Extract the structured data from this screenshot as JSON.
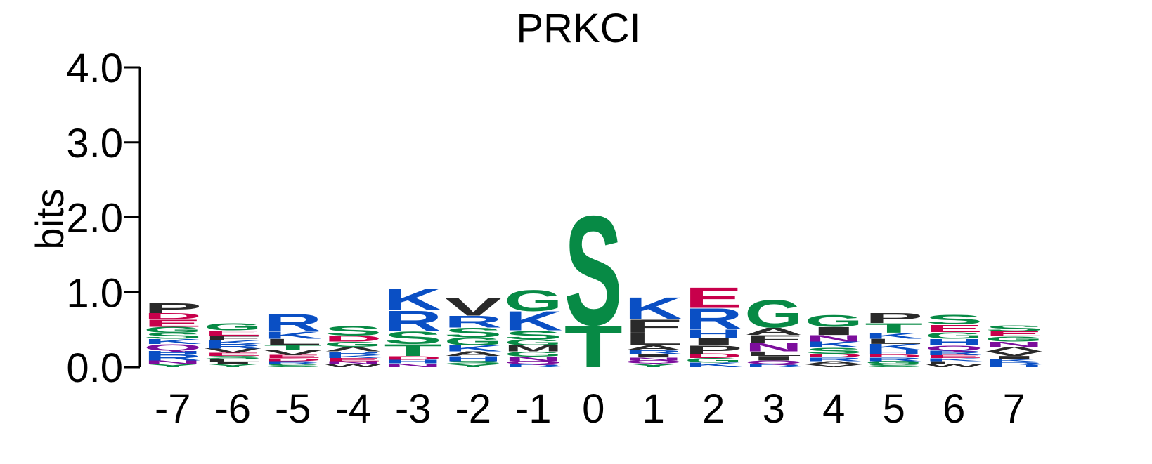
{
  "chart_data": {
    "type": "sequence-logo",
    "title": "PRKCI",
    "ylabel": "bits",
    "ylim": [
      0,
      4
    ],
    "yticks": [
      "0.0",
      "1.0",
      "2.0",
      "3.0",
      "4.0"
    ],
    "colors": {
      "acidic": "#c8004b",
      "basic": "#0a4fc4",
      "polar": "#078a45",
      "amide": "#7c0e9c",
      "hydrophobic": "#2a2a2a"
    },
    "color_map": {
      "D": "acidic",
      "E": "acidic",
      "K": "basic",
      "R": "basic",
      "H": "basic",
      "S": "polar",
      "T": "polar",
      "G": "polar",
      "Y": "polar",
      "C": "polar",
      "N": "amide",
      "Q": "amide",
      "A": "hydrophobic",
      "V": "hydrophobic",
      "L": "hydrophobic",
      "I": "hydrophobic",
      "P": "hydrophobic",
      "F": "hydrophobic",
      "M": "hydrophobic",
      "W": "hydrophobic"
    },
    "positions": [
      {
        "label": "-7",
        "stack": [
          [
            "Y",
            0.04
          ],
          [
            "N",
            0.05
          ],
          [
            "R",
            0.08
          ],
          [
            "H",
            0.05
          ],
          [
            "Q",
            0.09
          ],
          [
            "K",
            0.07
          ],
          [
            "S",
            0.08
          ],
          [
            "G",
            0.08
          ],
          [
            "E",
            0.1
          ],
          [
            "D",
            0.08
          ],
          [
            "P",
            0.14
          ]
        ]
      },
      {
        "label": "-6",
        "stack": [
          [
            "Y",
            0.04
          ],
          [
            "I",
            0.03
          ],
          [
            "L",
            0.04
          ],
          [
            "S",
            0.04
          ],
          [
            "E",
            0.04
          ],
          [
            "V",
            0.06
          ],
          [
            "R",
            0.06
          ],
          [
            "K",
            0.05
          ],
          [
            "F",
            0.06
          ],
          [
            "E",
            0.07
          ],
          [
            "G",
            0.1
          ]
        ]
      },
      {
        "label": "-5",
        "stack": [
          [
            "S",
            0.04
          ],
          [
            "R",
            0.04
          ],
          [
            "D",
            0.04
          ],
          [
            "E",
            0.04
          ],
          [
            "V",
            0.07
          ],
          [
            "T",
            0.07
          ],
          [
            "L",
            0.08
          ],
          [
            "K",
            0.1
          ],
          [
            "R",
            0.24
          ]
        ]
      },
      {
        "label": "-4",
        "stack": [
          [
            "W",
            0.04
          ],
          [
            "N",
            0.04
          ],
          [
            "E",
            0.04
          ],
          [
            "K",
            0.04
          ],
          [
            "R",
            0.05
          ],
          [
            "A",
            0.06
          ],
          [
            "G",
            0.07
          ],
          [
            "D",
            0.08
          ],
          [
            "S",
            0.13
          ]
        ]
      },
      {
        "label": "-3",
        "stack": [
          [
            "N",
            0.05
          ],
          [
            "H",
            0.05
          ],
          [
            "D",
            0.05
          ],
          [
            "T",
            0.16
          ],
          [
            "S",
            0.17
          ],
          [
            "R",
            0.28
          ],
          [
            "K",
            0.3
          ]
        ]
      },
      {
        "label": "-2",
        "stack": [
          [
            "Y",
            0.04
          ],
          [
            "S",
            0.04
          ],
          [
            "H",
            0.07
          ],
          [
            "A",
            0.06
          ],
          [
            "K",
            0.08
          ],
          [
            "G",
            0.11
          ],
          [
            "S",
            0.13
          ],
          [
            "R",
            0.16
          ],
          [
            "V",
            0.25
          ]
        ]
      },
      {
        "label": "-1",
        "stack": [
          [
            "R",
            0.04
          ],
          [
            "Q",
            0.04
          ],
          [
            "N",
            0.06
          ],
          [
            "G",
            0.07
          ],
          [
            "M",
            0.08
          ],
          [
            "G",
            0.08
          ],
          [
            "S",
            0.12
          ],
          [
            "K",
            0.26
          ],
          [
            "G",
            0.29
          ]
        ]
      },
      {
        "label": "0",
        "stack": [
          [
            "T",
            0.57
          ],
          [
            "S",
            1.5
          ]
        ]
      },
      {
        "label": "1",
        "stack": [
          [
            "Y",
            0.05
          ],
          [
            "Q",
            0.04
          ],
          [
            "N",
            0.04
          ],
          [
            "I",
            0.05
          ],
          [
            "R",
            0.05
          ],
          [
            "A",
            0.06
          ],
          [
            "L",
            0.17
          ],
          [
            "F",
            0.18
          ],
          [
            "K",
            0.3
          ]
        ]
      },
      {
        "label": "2",
        "stack": [
          [
            "K",
            0.06
          ],
          [
            "G",
            0.06
          ],
          [
            "D",
            0.06
          ],
          [
            "P",
            0.11
          ],
          [
            "I",
            0.1
          ],
          [
            "H",
            0.12
          ],
          [
            "R",
            0.28
          ],
          [
            "E",
            0.28
          ]
        ]
      },
      {
        "label": "3",
        "stack": [
          [
            "R",
            0.04
          ],
          [
            "Q",
            0.05
          ],
          [
            "I",
            0.06
          ],
          [
            "L",
            0.06
          ],
          [
            "N",
            0.11
          ],
          [
            "F",
            0.11
          ],
          [
            "A",
            0.1
          ],
          [
            "G",
            0.38
          ]
        ]
      },
      {
        "label": "4",
        "stack": [
          [
            "V",
            0.04
          ],
          [
            "A",
            0.04
          ],
          [
            "R",
            0.05
          ],
          [
            "D",
            0.05
          ],
          [
            "S",
            0.08
          ],
          [
            "K",
            0.08
          ],
          [
            "N",
            0.09
          ],
          [
            "I",
            0.11
          ],
          [
            "G",
            0.16
          ]
        ]
      },
      {
        "label": "5",
        "stack": [
          [
            "S",
            0.04
          ],
          [
            "G",
            0.04
          ],
          [
            "R",
            0.05
          ],
          [
            "D",
            0.04
          ],
          [
            "H",
            0.06
          ],
          [
            "K",
            0.08
          ],
          [
            "L",
            0.07
          ],
          [
            "K",
            0.08
          ],
          [
            "T",
            0.13
          ],
          [
            "P",
            0.14
          ]
        ]
      },
      {
        "label": "6",
        "stack": [
          [
            "W",
            0.04
          ],
          [
            "L",
            0.04
          ],
          [
            "K",
            0.04
          ],
          [
            "E",
            0.04
          ],
          [
            "R",
            0.06
          ],
          [
            "Q",
            0.07
          ],
          [
            "H",
            0.09
          ],
          [
            "G",
            0.09
          ],
          [
            "E",
            0.1
          ],
          [
            "S",
            0.13
          ]
        ]
      },
      {
        "label": "7",
        "stack": [
          [
            "H",
            0.03
          ],
          [
            "R",
            0.04
          ],
          [
            "K",
            0.04
          ],
          [
            "I",
            0.04
          ],
          [
            "V",
            0.06
          ],
          [
            "A",
            0.06
          ],
          [
            "N",
            0.07
          ],
          [
            "G",
            0.07
          ],
          [
            "E",
            0.07
          ],
          [
            "S",
            0.08
          ]
        ]
      }
    ]
  }
}
